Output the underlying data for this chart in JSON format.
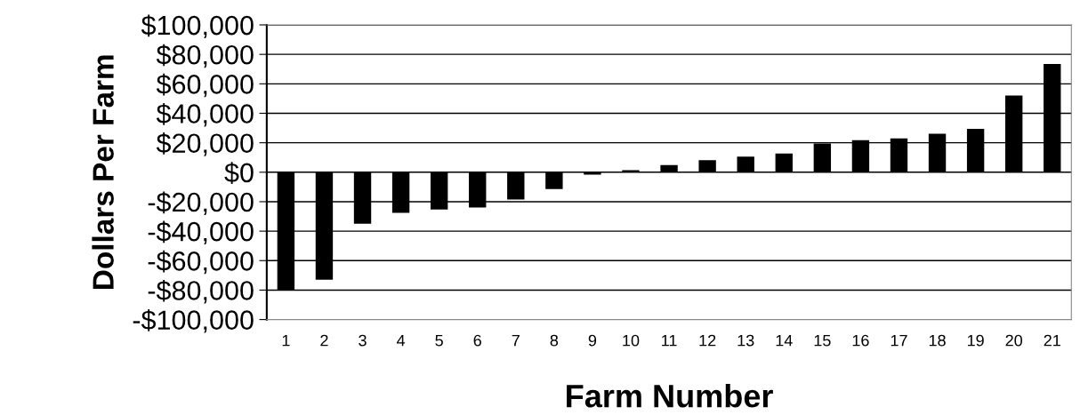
{
  "chart_data": {
    "type": "bar",
    "xlabel": "Farm Number",
    "ylabel": "Dollars Per Farm",
    "categories": [
      "1",
      "2",
      "3",
      "4",
      "5",
      "6",
      "7",
      "8",
      "9",
      "10",
      "11",
      "12",
      "13",
      "14",
      "15",
      "16",
      "17",
      "18",
      "19",
      "20",
      "21"
    ],
    "values": [
      -80000,
      -73000,
      -35000,
      -27500,
      -25300,
      -24000,
      -18500,
      -11500,
      -1600,
      1400,
      4800,
      8200,
      10600,
      12700,
      19500,
      21700,
      22900,
      26100,
      29500,
      52000,
      73500
    ],
    "color": "#000000",
    "ylim": [
      -100000,
      100000
    ],
    "yticks": [
      {
        "value": -100000,
        "label": "-$100,000"
      },
      {
        "value": -80000,
        "label": "-$80,000"
      },
      {
        "value": -60000,
        "label": "-$60,000"
      },
      {
        "value": -40000,
        "label": "-$40,000"
      },
      {
        "value": -20000,
        "label": "-$20,000"
      },
      {
        "value": 0,
        "label": "$0"
      },
      {
        "value": 20000,
        "label": "$20,000"
      },
      {
        "value": 40000,
        "label": "$40,000"
      },
      {
        "value": 60000,
        "label": "$60,000"
      },
      {
        "value": 80000,
        "label": "$80,000"
      },
      {
        "value": 100000,
        "label": "$100,000"
      }
    ],
    "grid": "y"
  }
}
